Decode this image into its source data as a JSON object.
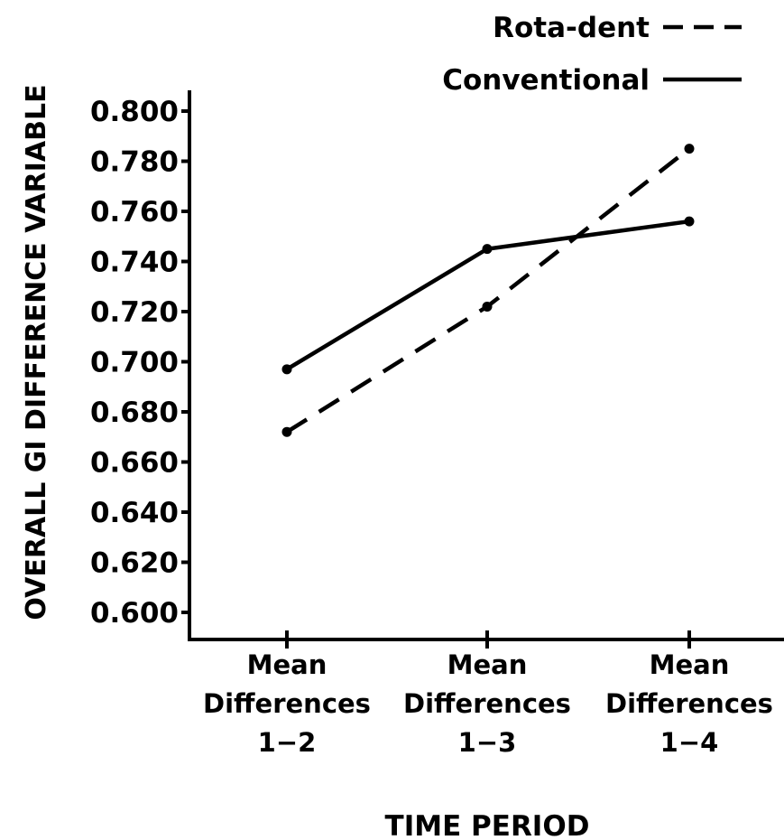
{
  "chart_data": {
    "type": "line",
    "ylabel": "OVERALL GI DIFFERENCE VARIABLE",
    "xlabel": "TIME PERIOD",
    "categories": [
      [
        "Mean",
        "Differences",
        "1−2"
      ],
      [
        "Mean",
        "Differences",
        "1−3"
      ],
      [
        "Mean",
        "Differences",
        "1−4"
      ]
    ],
    "yticks": [
      "0.600",
      "0.620",
      "0.640",
      "0.660",
      "0.680",
      "0.700",
      "0.720",
      "0.740",
      "0.760",
      "0.780",
      "0.800"
    ],
    "ylim": [
      0.6,
      0.8
    ],
    "series": [
      {
        "name": "Rota-dent",
        "style": "dashed",
        "values": [
          0.672,
          0.722,
          0.785
        ]
      },
      {
        "name": "Conventional",
        "style": "solid",
        "values": [
          0.697,
          0.745,
          0.756
        ]
      }
    ],
    "legend_position": "top-right",
    "grid": false,
    "color": "#000000"
  }
}
